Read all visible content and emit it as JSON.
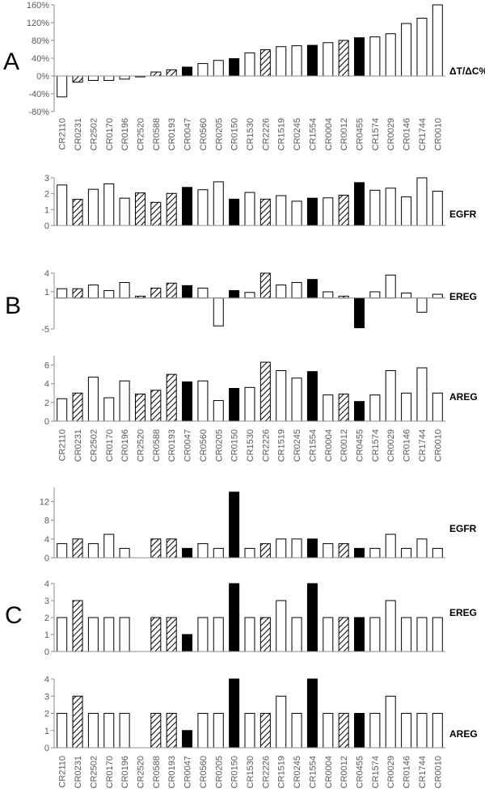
{
  "panel_labels": [
    "A",
    "B",
    "C"
  ],
  "categories": [
    "CR2110",
    "CR0231",
    "CR2502",
    "CR0170",
    "CR0196",
    "CR2520",
    "CR0588",
    "CR0193",
    "CR0047",
    "CR0560",
    "CR0205",
    "CR0150",
    "CR1530",
    "CR2226",
    "CR1519",
    "CR0245",
    "CR1554",
    "CR0004",
    "CR0012",
    "CR0455",
    "CR1574",
    "CR0029",
    "CR0146",
    "CR1744",
    "CR0010"
  ],
  "bar_styles": [
    "white",
    "hatched",
    "white",
    "white",
    "white",
    "hatched",
    "hatched",
    "hatched",
    "black",
    "white",
    "white",
    "black",
    "white",
    "hatched",
    "white",
    "white",
    "black",
    "white",
    "hatched",
    "black",
    "white",
    "white",
    "white",
    "white",
    "white"
  ],
  "colors": {
    "bar_fill_white": "#ffffff",
    "bar_fill_black": "#000000",
    "bar_edge": "#000000",
    "axis": "#8c8c8c",
    "tick_text": "#595959"
  },
  "chart_data": [
    {
      "type": "bar",
      "panel": "A",
      "label": "ΔT/ΔC%",
      "ylim": [
        -80,
        160
      ],
      "ticks": [
        -80,
        -40,
        0,
        40,
        80,
        120,
        160
      ],
      "tick_labels": [
        "-80%",
        "-40%",
        "0%",
        "40%",
        "80%",
        "120%",
        "160%"
      ],
      "values": [
        -47,
        -14,
        -10,
        -10,
        -7,
        -2,
        9,
        14,
        20,
        28,
        35,
        39,
        52,
        59,
        66,
        68,
        69,
        75,
        80,
        86,
        88,
        95,
        118,
        130,
        160
      ],
      "show_x_labels": true
    },
    {
      "type": "bar",
      "panel": "B",
      "label": "EGFR",
      "ylim": [
        0,
        3
      ],
      "ticks": [
        0,
        1,
        2,
        3
      ],
      "tick_labels": [
        "0",
        "1",
        "2",
        "3"
      ],
      "values": [
        2.55,
        1.65,
        2.28,
        2.62,
        1.72,
        2.05,
        1.46,
        2.02,
        2.4,
        2.25,
        2.75,
        1.66,
        2.08,
        1.66,
        1.88,
        1.53,
        1.72,
        1.74,
        1.91,
        2.7,
        2.22,
        2.35,
        1.8,
        3.0,
        2.16
      ],
      "show_x_labels": false
    },
    {
      "type": "bar",
      "panel": "B",
      "label": "EREG",
      "ylim": [
        -5,
        4
      ],
      "ticks": [
        -5,
        1,
        4
      ],
      "tick_labels": [
        "-5",
        "1",
        "4"
      ],
      "values": [
        1.5,
        1.5,
        2.1,
        1.2,
        2.5,
        0.3,
        1.6,
        2.4,
        2.0,
        1.6,
        -4.5,
        1.2,
        0.9,
        4.0,
        2.1,
        2.5,
        3.0,
        1.0,
        0.3,
        -4.8,
        1.0,
        3.7,
        0.8,
        -2.3,
        0.6
      ],
      "show_x_labels": false
    },
    {
      "type": "bar",
      "panel": "B",
      "label": "AREG",
      "ylim": [
        0,
        7
      ],
      "ticks": [
        0,
        2,
        4,
        6
      ],
      "tick_labels": [
        "0",
        "2",
        "4",
        "6"
      ],
      "values": [
        2.4,
        3.0,
        4.7,
        2.5,
        4.3,
        2.9,
        3.3,
        5.0,
        4.2,
        4.3,
        2.2,
        3.5,
        3.6,
        6.3,
        5.4,
        4.6,
        5.3,
        2.8,
        2.9,
        2.1,
        2.8,
        5.4,
        3.0,
        5.7,
        3.0
      ],
      "show_x_labels": true
    },
    {
      "type": "bar",
      "panel": "C",
      "label": "EGFR",
      "ylim": [
        0,
        15
      ],
      "ticks": [
        0,
        4,
        8,
        12
      ],
      "tick_labels": [
        "0",
        "4",
        "8",
        "12"
      ],
      "values": [
        3,
        4,
        3,
        5,
        2,
        0,
        4,
        4,
        2,
        3,
        2,
        14,
        2,
        3,
        4,
        4,
        4,
        3,
        3,
        2,
        2,
        5,
        2,
        4,
        2
      ],
      "show_x_labels": false
    },
    {
      "type": "bar",
      "panel": "C",
      "label": "EREG",
      "ylim": [
        0,
        4
      ],
      "ticks": [
        0,
        1,
        2,
        3,
        4
      ],
      "tick_labels": [
        "0",
        "1",
        "2",
        "3",
        "4"
      ],
      "values": [
        2,
        3,
        2,
        2,
        2,
        0,
        2,
        2,
        1,
        2,
        2,
        4,
        2,
        2,
        3,
        2,
        4,
        2,
        2,
        2,
        2,
        3,
        2,
        2,
        2
      ],
      "show_x_labels": false
    },
    {
      "type": "bar",
      "panel": "C",
      "label": "AREG",
      "ylim": [
        0,
        4
      ],
      "ticks": [
        0,
        1,
        2,
        3,
        4
      ],
      "tick_labels": [
        "0",
        "1",
        "2",
        "3",
        "4"
      ],
      "values": [
        2,
        3,
        2,
        2,
        2,
        0,
        2,
        2,
        1,
        2,
        2,
        4,
        2,
        2,
        3,
        2,
        4,
        2,
        2,
        2,
        2,
        3,
        2,
        2,
        2
      ],
      "show_x_labels": true
    }
  ]
}
